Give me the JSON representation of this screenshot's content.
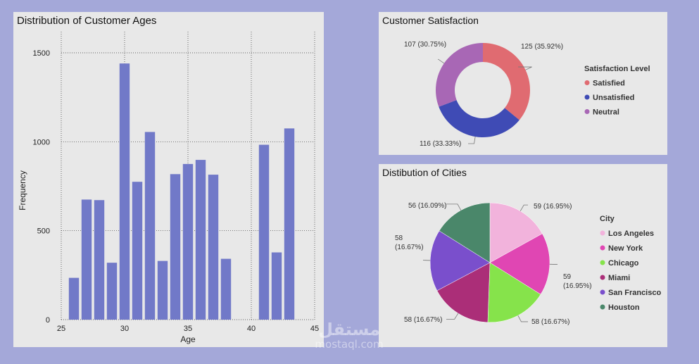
{
  "ages": {
    "title": "Distribution of Customer Ages",
    "chart_data": {
      "type": "bar",
      "title": "Distribution of Customer Ages",
      "xlabel": "Age",
      "ylabel": "Frequency",
      "x": [
        26,
        27,
        28,
        29,
        30,
        31,
        32,
        33,
        34,
        35,
        36,
        37,
        38,
        41,
        42,
        43
      ],
      "values": [
        235,
        675,
        672,
        320,
        1440,
        775,
        1055,
        330,
        818,
        875,
        898,
        815,
        342,
        983,
        378,
        1075
      ],
      "xlim": [
        25,
        45
      ],
      "ylim": [
        0,
        1500
      ],
      "xticks": [
        "25",
        "30",
        "35",
        "40",
        "45"
      ],
      "yticks": [
        "0",
        "500",
        "1000",
        "1500"
      ],
      "grid": true,
      "color": "#7179c8"
    }
  },
  "satisfaction": {
    "title": "Customer Satisfaction",
    "chart_data": {
      "type": "pie",
      "donut": true,
      "title": "Customer Satisfaction",
      "legend_title": "Satisfaction Level",
      "legend_position": "right",
      "slices": [
        {
          "label": "Satisfied",
          "value": 125,
          "percent": "35.92%",
          "text": "125 (35.92%)",
          "color": "#e06b71"
        },
        {
          "label": "Unsatisfied",
          "value": 116,
          "percent": "33.33%",
          "text": "116 (33.33%)",
          "color": "#3f4bb5"
        },
        {
          "label": "Neutral",
          "value": 107,
          "percent": "30.75%",
          "text": "107 (30.75%)",
          "color": "#a867b5"
        }
      ]
    }
  },
  "cities": {
    "title": "Distibution of Cities",
    "chart_data": {
      "type": "pie",
      "title": "Distibution of Cities",
      "legend_title": "City",
      "legend_position": "right",
      "slices": [
        {
          "label": "Los Angeles",
          "value": 59,
          "percent": "16.95%",
          "text": "59 (16.95%)",
          "color": "#f2b3dc"
        },
        {
          "label": "New York",
          "value": 59,
          "percent": "16.95%",
          "text": "59 (16.95%)",
          "color": "#e046b3"
        },
        {
          "label": "Chicago",
          "value": 58,
          "percent": "16.67%",
          "text": "58 (16.67%)",
          "color": "#86e34b"
        },
        {
          "label": "Miami",
          "value": 58,
          "percent": "16.67%",
          "text": "58 (16.67%)",
          "color": "#ab2e78"
        },
        {
          "label": "San Francisco",
          "value": 58,
          "percent": "16.67%",
          "text": "58 (16.67%)",
          "color": "#7a4fcc"
        },
        {
          "label": "Houston",
          "value": 56,
          "percent": "16.09%",
          "text": "56 (16.09%)",
          "color": "#4a876a"
        }
      ]
    }
  },
  "watermark": {
    "arabic": "مستقل",
    "latin": "mostaql.com"
  }
}
